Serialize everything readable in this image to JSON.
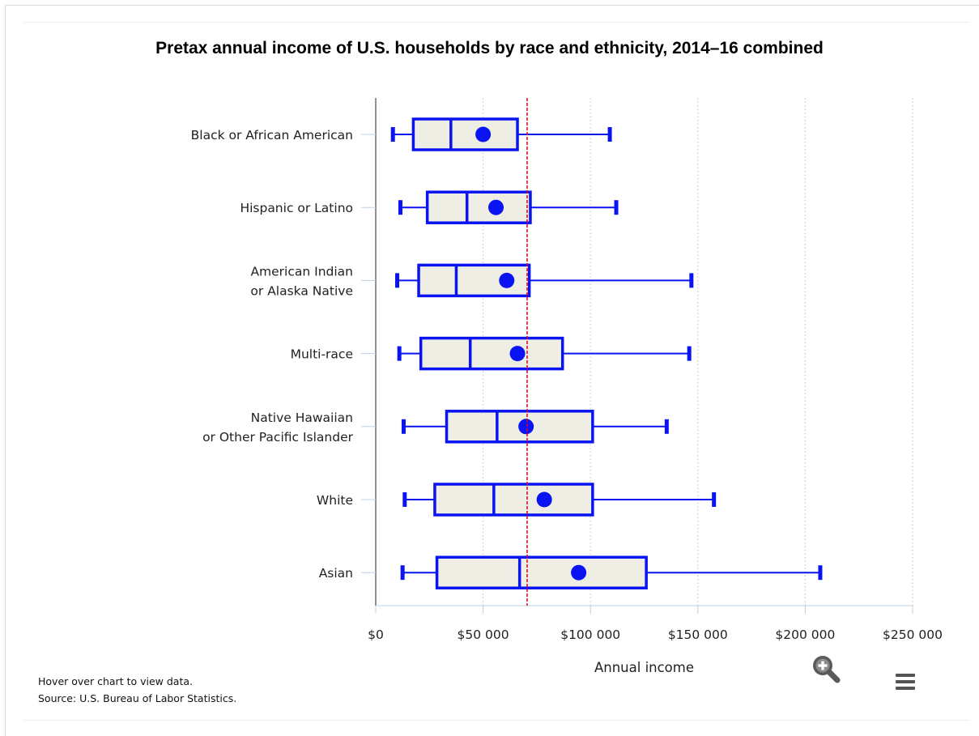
{
  "chart_data": {
    "type": "boxplot",
    "title": "Pretax annual income of U.S. households by race and ethnicity, 2014–16 combined",
    "xlabel": "Annual income",
    "ylabel": "",
    "xlim": [
      0,
      250000
    ],
    "x_ticks": [
      {
        "value": 0,
        "label": "$0"
      },
      {
        "value": 50000,
        "label": "$50 000"
      },
      {
        "value": 100000,
        "label": "$100 000"
      },
      {
        "value": 150000,
        "label": "$150 000"
      },
      {
        "value": 200000,
        "label": "$200 000"
      },
      {
        "value": 250000,
        "label": "$250 000"
      }
    ],
    "grid": "vertical dotted",
    "reference_line": {
      "value": 70500,
      "style": "red dashed"
    },
    "categories": [
      {
        "label_lines": [
          "Black or African American"
        ],
        "low": 8000,
        "q1": 17500,
        "median": 35000,
        "q3": 66000,
        "high": 109000,
        "mean": 50000
      },
      {
        "label_lines": [
          "Hispanic or Latino"
        ],
        "low": 11500,
        "q1": 24000,
        "median": 42500,
        "q3": 72000,
        "high": 112000,
        "mean": 56000
      },
      {
        "label_lines": [
          "American Indian",
          "or Alaska Native"
        ],
        "low": 10000,
        "q1": 20000,
        "median": 37500,
        "q3": 71500,
        "high": 147000,
        "mean": 61000
      },
      {
        "label_lines": [
          "Multi-race"
        ],
        "low": 11000,
        "q1": 21000,
        "median": 44000,
        "q3": 87000,
        "high": 146000,
        "mean": 66000
      },
      {
        "label_lines": [
          "Native Hawaiian",
          "or Other Pacific Islander"
        ],
        "low": 13000,
        "q1": 33000,
        "median": 56500,
        "q3": 101000,
        "high": 135500,
        "mean": 70000
      },
      {
        "label_lines": [
          "White"
        ],
        "low": 13500,
        "q1": 27500,
        "median": 55000,
        "q3": 101000,
        "high": 157500,
        "mean": 78500
      },
      {
        "label_lines": [
          "Asian"
        ],
        "low": 12500,
        "q1": 28500,
        "median": 67000,
        "q3": 126000,
        "high": 207000,
        "mean": 94500
      }
    ],
    "colors": {
      "box_stroke": "#0a14f2",
      "box_fill": "#efeee4",
      "mean_dot": "#0a14f2",
      "reference_line": "#e5001c",
      "grid": "#c8c8c8",
      "axis": "#6e6e6e",
      "tick_label": "#222222"
    }
  },
  "footnotes": {
    "hover_hint": "Hover over chart to view data.",
    "source": "Source: U.S. Bureau of Labor Statistics."
  },
  "controls": {
    "zoom_icon": "zoom-in-magnifier-icon",
    "menu_icon": "hamburger-menu-icon"
  }
}
